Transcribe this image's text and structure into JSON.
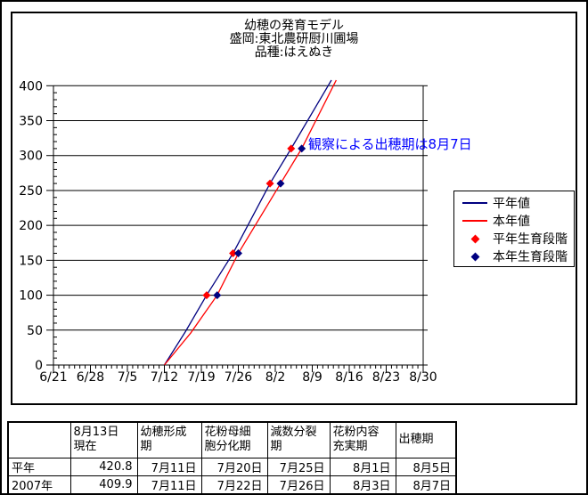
{
  "chart": {
    "title_lines": [
      "幼穂の発育モデル",
      "盛岡:東北農研厨川圃場",
      "品種:はえぬき"
    ],
    "annotation": {
      "text": "観察による出穂期は8月7日",
      "color": "#0000ff"
    },
    "colors": {
      "normal_line": "#000080",
      "current_line": "#ff0000",
      "normal_marker": "#ff0000",
      "current_marker": "#000080",
      "grid": "#000000",
      "axis": "#000000"
    },
    "legend": [
      {
        "label": "平年値",
        "type": "line",
        "color": "#000080"
      },
      {
        "label": "本年値",
        "type": "line",
        "color": "#ff0000"
      },
      {
        "label": "平年生育段階",
        "type": "diamond",
        "color": "#ff0000"
      },
      {
        "label": "本年生育段階",
        "type": "diamond",
        "color": "#000080"
      }
    ]
  },
  "chart_data": {
    "type": "line",
    "title": "幼穂の発育モデル 盛岡:東北農研厨川圃場 品種:はえぬき",
    "xlabel": "",
    "ylabel": "",
    "x_tick_labels": [
      "6/21",
      "6/28",
      "7/5",
      "7/12",
      "7/19",
      "7/26",
      "8/2",
      "8/9",
      "8/16",
      "8/23",
      "8/30"
    ],
    "y_tick_labels": [
      "0",
      "50",
      "100",
      "150",
      "200",
      "250",
      "300",
      "350",
      "400"
    ],
    "ylim": [
      0,
      400
    ],
    "y_major_step": 50,
    "y_minor_step": 10,
    "x_major_step_days": 7,
    "x_minor_step_days": 1,
    "grid": "horizontal-major",
    "legend_position": "right",
    "annotation": "観察による出穂期は8月7日",
    "series": [
      {
        "name": "平年値",
        "type": "line",
        "color": "#000080",
        "points": [
          [
            "7/12",
            0
          ],
          [
            "7/16",
            48
          ],
          [
            "7/20",
            100
          ],
          [
            "7/25",
            160
          ],
          [
            "8/1",
            260
          ],
          [
            "8/5",
            310
          ],
          [
            "8/12",
            400
          ]
        ]
      },
      {
        "name": "本年値",
        "type": "line",
        "color": "#ff0000",
        "points": [
          [
            "7/12",
            0
          ],
          [
            "7/17",
            46
          ],
          [
            "7/22",
            100
          ],
          [
            "7/26",
            160
          ],
          [
            "8/3",
            260
          ],
          [
            "8/7",
            310
          ],
          [
            "8/13",
            400
          ]
        ]
      },
      {
        "name": "平年生育段階",
        "type": "scatter",
        "marker": "diamond",
        "color": "#ff0000",
        "points": [
          [
            "7/20",
            100
          ],
          [
            "7/25",
            160
          ],
          [
            "8/1",
            260
          ],
          [
            "8/5",
            310
          ]
        ]
      },
      {
        "name": "本年生育段階",
        "type": "scatter",
        "marker": "diamond",
        "color": "#000080",
        "points": [
          [
            "7/22",
            100
          ],
          [
            "7/26",
            160
          ],
          [
            "8/3",
            260
          ],
          [
            "8/7",
            310
          ]
        ]
      }
    ]
  },
  "table": {
    "headers": [
      "",
      "8月13日\n現在",
      "幼穂形成\n期",
      "花粉母細\n胞分化期",
      "減数分裂\n期",
      "花粉内容\n充実期",
      "出穂期"
    ],
    "rows": [
      [
        "平年",
        "420.8",
        "7月11日",
        "7月20日",
        "7月25日",
        "8月1日",
        "8月5日"
      ],
      [
        "2007年",
        "409.9",
        "7月11日",
        "7月22日",
        "7月26日",
        "8月3日",
        "8月7日"
      ]
    ]
  }
}
